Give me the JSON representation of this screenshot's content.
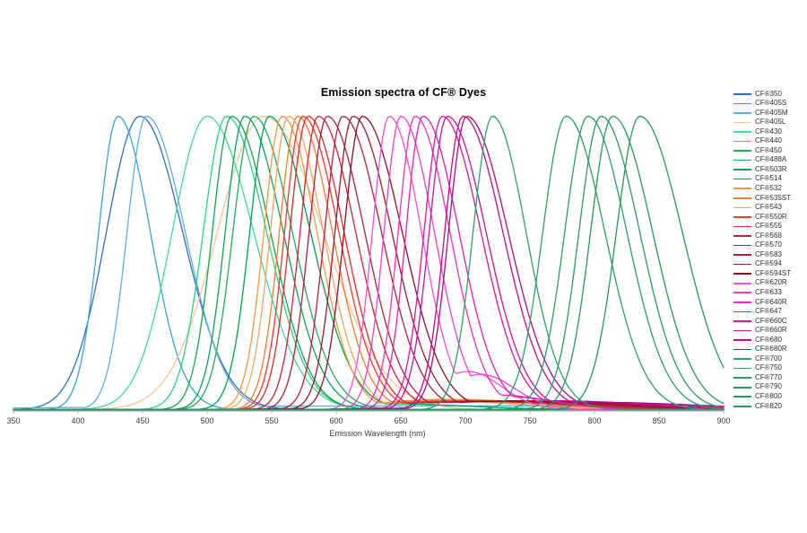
{
  "chart_data": {
    "type": "line",
    "title": "Emission spectra of CF® Dyes",
    "xlabel": "Emission Wavelength (nm)",
    "xlim": [
      350,
      900
    ],
    "xticks": [
      350,
      400,
      450,
      500,
      550,
      600,
      650,
      700,
      750,
      800,
      850,
      900
    ],
    "ylim": [
      0,
      1
    ],
    "grid": false,
    "legend_position": "right",
    "background_color": "#ffffff",
    "axis_color": "#ababab",
    "tick_label_color": "#3a3a3a",
    "note": "All curves normalized to equal peak height; peak = emission maximum (nm), sl/sr = left/right spectral half-widths (nm), tail = [amplitude, center nm, width nm] secondary shoulder",
    "series": [
      {
        "name": "CF®350",
        "color": "#2F6EB8",
        "peak": 448,
        "sl": 26,
        "sr": 33
      },
      {
        "name": "CF®405S",
        "color": "#3BA0DA",
        "peak": 431,
        "sl": 15,
        "sr": 25
      },
      {
        "name": "CF®405M",
        "color": "#5FAEE0",
        "peak": 453,
        "sl": 15,
        "sr": 30,
        "tail": [
          0.013,
          680,
          260
        ]
      },
      {
        "name": "CF®405L",
        "color": "#F6C493",
        "peak": 544,
        "sl": 36,
        "sr": 46
      },
      {
        "name": "CF®430",
        "color": "#41D89A",
        "peak": 500,
        "sl": 27,
        "sr": 36
      },
      {
        "name": "CF®440",
        "color": "#2BD181",
        "peak": 515,
        "sl": 18,
        "sr": 31
      },
      {
        "name": "CF®450",
        "color": "#23AB5B",
        "peak": 536,
        "sl": 16,
        "sr": 30
      },
      {
        "name": "CF®488A",
        "color": "#1AA04F",
        "peak": 519,
        "sl": 15,
        "sr": 30
      },
      {
        "name": "CF®503R",
        "color": "#0FA05C",
        "peak": 529,
        "sl": 15,
        "sr": 30
      },
      {
        "name": "CF®514",
        "color": "#00A050",
        "peak": 548,
        "sl": 15,
        "sr": 32,
        "tail": [
          0.02,
          640,
          60
        ]
      },
      {
        "name": "CF®532",
        "color": "#F6983F",
        "peak": 558,
        "sl": 14,
        "sr": 27,
        "tail": [
          0.03,
          680,
          60
        ]
      },
      {
        "name": "CF®535ST",
        "color": "#EF7D2B",
        "peak": 570,
        "sl": 14,
        "sr": 27,
        "tail": [
          0.035,
          690,
          65
        ]
      },
      {
        "name": "CF®543",
        "color": "#F7A55C",
        "peak": 563,
        "sl": 14,
        "sr": 27,
        "tail": [
          0.03,
          685,
          60
        ]
      },
      {
        "name": "CF®550R",
        "color": "#EB3A30",
        "peak": 574,
        "sl": 14,
        "sr": 28,
        "tail": [
          0.03,
          700,
          70
        ]
      },
      {
        "name": "CF®555",
        "color": "#DD2A22",
        "peak": 578,
        "sl": 14,
        "sr": 28,
        "tail": [
          0.028,
          705,
          70
        ]
      },
      {
        "name": "CF®568",
        "color": "#CB2430",
        "peak": 586,
        "sl": 14,
        "sr": 29,
        "tail": [
          0.028,
          715,
          75
        ]
      },
      {
        "name": "CF®570",
        "color": "#AC1F3E",
        "peak": 593,
        "sl": 14,
        "sr": 29,
        "tail": [
          0.028,
          720,
          75
        ]
      },
      {
        "name": "CF®583",
        "color": "#B01E3F",
        "peak": 605,
        "sl": 14,
        "sr": 30,
        "tail": [
          0.028,
          730,
          80
        ]
      },
      {
        "name": "CF®594",
        "color": "#97192F",
        "peak": 613,
        "sl": 14,
        "sr": 30,
        "tail": [
          0.028,
          735,
          80
        ]
      },
      {
        "name": "CF®594ST",
        "color": "#851226",
        "peak": 620,
        "sl": 14,
        "sr": 31,
        "tail": [
          0.03,
          740,
          85
        ]
      },
      {
        "name": "CF®620R",
        "color": "#F252D2",
        "peak": 641,
        "sl": 13,
        "sr": 25,
        "tail": [
          0.13,
          702,
          26
        ]
      },
      {
        "name": "CF®633",
        "color": "#EE41C7",
        "peak": 650,
        "sl": 13,
        "sr": 26,
        "tail": [
          0.12,
          712,
          26
        ]
      },
      {
        "name": "CF®640R",
        "color": "#E833BE",
        "peak": 661,
        "sl": 13,
        "sr": 27,
        "tail": [
          0.05,
          725,
          40
        ]
      },
      {
        "name": "CF®647",
        "color": "#E01FB2",
        "peak": 667,
        "sl": 13,
        "sr": 28,
        "tail": [
          0.045,
          730,
          40
        ]
      },
      {
        "name": "CF®660C",
        "color": "#D319A4",
        "peak": 682,
        "sl": 14,
        "sr": 30,
        "tail": [
          0.03,
          765,
          70
        ]
      },
      {
        "name": "CF®660R",
        "color": "#C61399",
        "peak": 686,
        "sl": 14,
        "sr": 30,
        "tail": [
          0.03,
          770,
          70
        ]
      },
      {
        "name": "CF®680",
        "color": "#BB0E8D",
        "peak": 698,
        "sl": 14,
        "sr": 31,
        "tail": [
          0.025,
          790,
          80
        ]
      },
      {
        "name": "CF®680R",
        "color": "#AF0A83",
        "peak": 701,
        "sl": 14,
        "sr": 32,
        "tail": [
          0.025,
          800,
          80
        ]
      },
      {
        "name": "CF®700",
        "color": "#2FA06A",
        "peak": 721,
        "sl": 15,
        "sr": 26
      },
      {
        "name": "CF®750",
        "color": "#2D9E67",
        "peak": 778,
        "sl": 18,
        "sr": 30
      },
      {
        "name": "CF®770",
        "color": "#2B9C65",
        "peak": 795,
        "sl": 18,
        "sr": 30
      },
      {
        "name": "CF®790",
        "color": "#299A63",
        "peak": 805,
        "sl": 17,
        "sr": 30
      },
      {
        "name": "CF®800",
        "color": "#279861",
        "peak": 814,
        "sl": 17,
        "sr": 31
      },
      {
        "name": "CF®820",
        "color": "#25975F",
        "peak": 835,
        "sl": 18,
        "sr": 33
      }
    ]
  }
}
